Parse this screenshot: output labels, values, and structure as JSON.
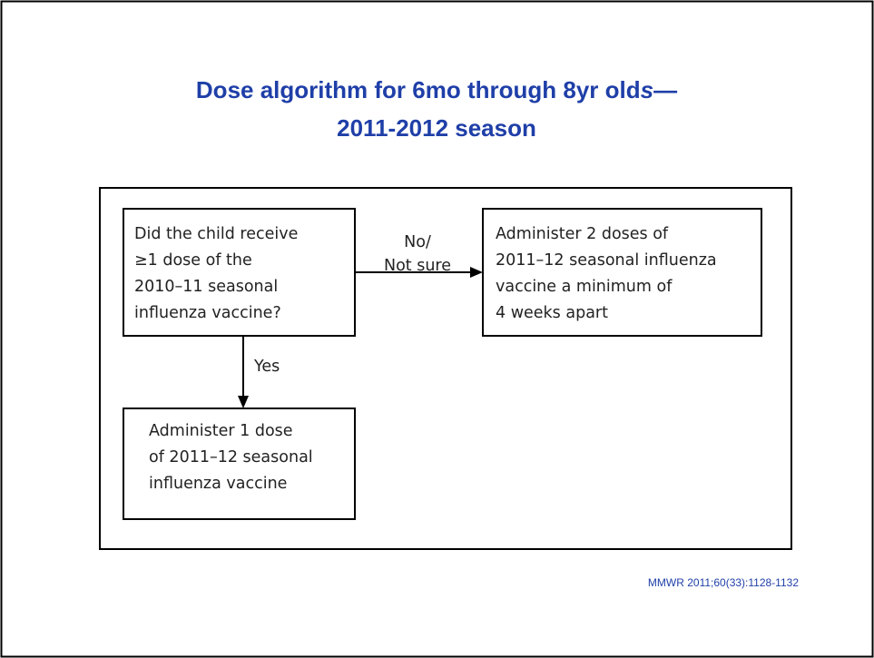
{
  "title": {
    "line1": "Dose algorithm for 6mo through 8yr old",
    "line1_italic": "s",
    "line1_dash": "—",
    "line2": "2011-2012 season"
  },
  "nodes": [
    {
      "label": [
        "Did the child receive",
        "≥1 dose of the",
        "2010–11 seasonal",
        "influenza vaccine?"
      ]
    },
    {
      "label": [
        "Administer 2 doses of",
        "2011–12 seasonal influenza",
        "vaccine a minimum of",
        "4 weeks apart"
      ]
    },
    {
      "label": [
        "Administer 1 dose",
        "of 2011–12 seasonal",
        "influenza vaccine"
      ]
    }
  ],
  "edges": [
    {
      "label": [
        "No/",
        "Not sure"
      ]
    },
    {
      "label": [
        "Yes"
      ]
    }
  ],
  "citation": "MMWR 2011;60(33):1128-1132"
}
